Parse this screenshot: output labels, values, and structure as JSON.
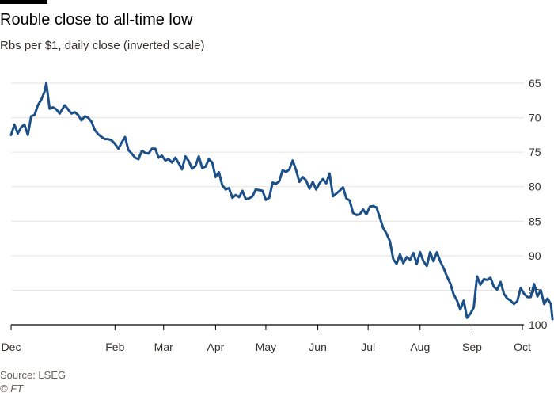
{
  "header": {
    "title": "Rouble close to all-time low",
    "subtitle": "Rbs per $1, daily close (inverted scale)"
  },
  "footer": {
    "source": "Source: LSEG",
    "credit": "© FT"
  },
  "colors": {
    "line": "#1c5088",
    "grid": "#e6e2dd",
    "axis": "#000000",
    "text": "#33302e"
  },
  "chart_data": {
    "type": "line",
    "title": "Rouble close to all-time low",
    "subtitle": "Rbs per $1, daily close (inverted scale)",
    "xlabel": "",
    "ylabel": "",
    "y_inverted": true,
    "ylim": [
      65,
      100
    ],
    "y_ticks": [
      65,
      70,
      75,
      80,
      85,
      90,
      95,
      100
    ],
    "y_tick_labels": [
      "65",
      "70",
      "75",
      "80",
      "85",
      "90",
      "95",
      "100"
    ],
    "y_axis_position": "right",
    "grid": true,
    "legend": "none",
    "x_ticks": [
      {
        "label": "Dec",
        "date": "2023-12-01"
      },
      {
        "label": "Feb",
        "date": "2024-02-01"
      },
      {
        "label": "Mar",
        "date": "2024-03-01"
      },
      {
        "label": "Apr",
        "date": "2024-04-01"
      },
      {
        "label": "May",
        "date": "2024-05-01"
      },
      {
        "label": "Jun",
        "date": "2024-06-01"
      },
      {
        "label": "Jul",
        "date": "2024-07-01"
      },
      {
        "label": "Aug",
        "date": "2024-08-01"
      },
      {
        "label": "Sep",
        "date": "2024-09-01"
      },
      {
        "label": "Oct",
        "date": "2024-10-01"
      }
    ],
    "series": [
      {
        "points": [
          [
            "2023-12-01",
            72.5
          ],
          [
            "2023-12-03",
            71.0
          ],
          [
            "2023-12-05",
            72.3
          ],
          [
            "2023-12-07",
            71.4
          ],
          [
            "2023-12-09",
            71.0
          ],
          [
            "2023-12-11",
            72.5
          ],
          [
            "2023-12-13",
            69.8
          ],
          [
            "2023-12-15",
            69.6
          ],
          [
            "2023-12-17",
            68.2
          ],
          [
            "2023-12-19",
            67.4
          ],
          [
            "2023-12-21",
            66.2
          ],
          [
            "2023-12-22",
            65.0
          ],
          [
            "2023-12-24",
            68.7
          ],
          [
            "2023-12-26",
            68.5
          ],
          [
            "2023-12-28",
            68.8
          ],
          [
            "2023-12-30",
            69.4
          ],
          [
            "2024-01-02",
            68.2
          ],
          [
            "2024-01-04",
            68.8
          ],
          [
            "2024-01-06",
            69.4
          ],
          [
            "2024-01-08",
            69.2
          ],
          [
            "2024-01-10",
            69.6
          ],
          [
            "2024-01-12",
            70.4
          ],
          [
            "2024-01-14",
            69.8
          ],
          [
            "2024-01-16",
            70.0
          ],
          [
            "2024-01-18",
            70.6
          ],
          [
            "2024-01-20",
            71.8
          ],
          [
            "2024-01-22",
            72.4
          ],
          [
            "2024-01-24",
            72.8
          ],
          [
            "2024-01-26",
            73.1
          ],
          [
            "2024-01-28",
            73.1
          ],
          [
            "2024-01-30",
            73.3
          ],
          [
            "2024-02-01",
            73.8
          ],
          [
            "2024-02-03",
            74.5
          ],
          [
            "2024-02-05",
            73.6
          ],
          [
            "2024-02-07",
            72.8
          ],
          [
            "2024-02-09",
            74.7
          ],
          [
            "2024-02-11",
            75.2
          ],
          [
            "2024-02-13",
            75.8
          ],
          [
            "2024-02-15",
            76.0
          ],
          [
            "2024-02-17",
            74.8
          ],
          [
            "2024-02-19",
            75.1
          ],
          [
            "2024-02-21",
            75.2
          ],
          [
            "2024-02-23",
            74.5
          ],
          [
            "2024-02-25",
            74.5
          ],
          [
            "2024-02-27",
            75.8
          ],
          [
            "2024-02-29",
            75.5
          ],
          [
            "2024-03-02",
            76.2
          ],
          [
            "2024-03-04",
            76.0
          ],
          [
            "2024-03-06",
            76.5
          ],
          [
            "2024-03-08",
            75.8
          ],
          [
            "2024-03-10",
            76.6
          ],
          [
            "2024-03-12",
            77.5
          ],
          [
            "2024-03-14",
            75.6
          ],
          [
            "2024-03-16",
            76.3
          ],
          [
            "2024-03-18",
            77.4
          ],
          [
            "2024-03-20",
            77.0
          ],
          [
            "2024-03-22",
            75.6
          ],
          [
            "2024-03-24",
            77.3
          ],
          [
            "2024-03-26",
            77.1
          ],
          [
            "2024-03-28",
            76.0
          ],
          [
            "2024-03-30",
            76.5
          ],
          [
            "2024-04-01",
            78.6
          ],
          [
            "2024-04-03",
            77.9
          ],
          [
            "2024-04-05",
            79.8
          ],
          [
            "2024-04-07",
            80.4
          ],
          [
            "2024-04-09",
            80.2
          ],
          [
            "2024-04-11",
            81.6
          ],
          [
            "2024-04-13",
            81.2
          ],
          [
            "2024-04-15",
            81.5
          ],
          [
            "2024-04-17",
            80.6
          ],
          [
            "2024-04-19",
            81.8
          ],
          [
            "2024-04-21",
            81.7
          ],
          [
            "2024-04-23",
            81.4
          ],
          [
            "2024-04-25",
            80.4
          ],
          [
            "2024-04-27",
            80.5
          ],
          [
            "2024-04-29",
            80.6
          ],
          [
            "2024-05-01",
            81.9
          ],
          [
            "2024-05-03",
            81.6
          ],
          [
            "2024-05-05",
            79.4
          ],
          [
            "2024-05-07",
            79.6
          ],
          [
            "2024-05-09",
            79.2
          ],
          [
            "2024-05-11",
            77.6
          ],
          [
            "2024-05-13",
            77.9
          ],
          [
            "2024-05-15",
            77.5
          ],
          [
            "2024-05-17",
            76.2
          ],
          [
            "2024-05-19",
            77.6
          ],
          [
            "2024-05-21",
            79.3
          ],
          [
            "2024-05-23",
            78.6
          ],
          [
            "2024-05-25",
            79.1
          ],
          [
            "2024-05-27",
            80.3
          ],
          [
            "2024-05-29",
            79.3
          ],
          [
            "2024-05-31",
            80.4
          ],
          [
            "2024-06-02",
            79.5
          ],
          [
            "2024-06-04",
            78.9
          ],
          [
            "2024-06-06",
            79.5
          ],
          [
            "2024-06-08",
            78.1
          ],
          [
            "2024-06-10",
            81.4
          ],
          [
            "2024-06-12",
            81.0
          ],
          [
            "2024-06-14",
            80.6
          ],
          [
            "2024-06-16",
            80.1
          ],
          [
            "2024-06-18",
            81.7
          ],
          [
            "2024-06-20",
            82.0
          ],
          [
            "2024-06-22",
            83.8
          ],
          [
            "2024-06-24",
            84.1
          ],
          [
            "2024-06-26",
            84.0
          ],
          [
            "2024-06-28",
            83.3
          ],
          [
            "2024-06-30",
            84.0
          ],
          [
            "2024-07-02",
            82.9
          ],
          [
            "2024-07-04",
            82.8
          ],
          [
            "2024-07-06",
            83.0
          ],
          [
            "2024-07-08",
            84.5
          ],
          [
            "2024-07-10",
            86.0
          ],
          [
            "2024-07-12",
            86.8
          ],
          [
            "2024-07-14",
            87.9
          ],
          [
            "2024-07-16",
            90.5
          ],
          [
            "2024-07-18",
            91.2
          ],
          [
            "2024-07-20",
            89.8
          ],
          [
            "2024-07-22",
            91.1
          ],
          [
            "2024-07-24",
            90.2
          ],
          [
            "2024-07-26",
            90.6
          ],
          [
            "2024-07-28",
            89.6
          ],
          [
            "2024-07-30",
            91.2
          ],
          [
            "2024-08-01",
            89.5
          ],
          [
            "2024-08-03",
            90.8
          ],
          [
            "2024-08-05",
            91.5
          ],
          [
            "2024-08-07",
            89.5
          ],
          [
            "2024-08-09",
            90.8
          ],
          [
            "2024-08-11",
            89.5
          ],
          [
            "2024-08-13",
            90.8
          ],
          [
            "2024-08-15",
            91.8
          ],
          [
            "2024-08-17",
            93.0
          ],
          [
            "2024-08-19",
            94.0
          ],
          [
            "2024-08-21",
            95.6
          ],
          [
            "2024-08-23",
            96.5
          ],
          [
            "2024-08-25",
            97.8
          ],
          [
            "2024-08-27",
            96.5
          ],
          [
            "2024-08-29",
            99.0
          ],
          [
            "2024-08-31",
            98.4
          ],
          [
            "2024-09-02",
            97.5
          ],
          [
            "2024-09-04",
            93.0
          ],
          [
            "2024-09-06",
            94.2
          ],
          [
            "2024-09-08",
            93.4
          ],
          [
            "2024-09-10",
            93.5
          ],
          [
            "2024-09-12",
            93.2
          ],
          [
            "2024-09-14",
            94.5
          ],
          [
            "2024-09-16",
            94.9
          ],
          [
            "2024-09-18",
            93.8
          ],
          [
            "2024-09-20",
            95.5
          ],
          [
            "2024-09-22",
            96.2
          ],
          [
            "2024-09-24",
            96.5
          ],
          [
            "2024-09-26",
            97.0
          ],
          [
            "2024-09-28",
            96.6
          ],
          [
            "2024-09-30",
            94.7
          ],
          [
            "2024-10-02",
            95.5
          ],
          [
            "2024-10-04",
            96.0
          ],
          [
            "2024-10-06",
            96.0
          ],
          [
            "2024-10-08",
            94.1
          ],
          [
            "2024-10-10",
            95.9
          ],
          [
            "2024-10-12",
            95.0
          ],
          [
            "2024-10-14",
            97.0
          ],
          [
            "2024-10-16",
            96.2
          ],
          [
            "2024-10-18",
            97.0
          ],
          [
            "2024-10-19",
            99.2
          ]
        ]
      }
    ]
  }
}
